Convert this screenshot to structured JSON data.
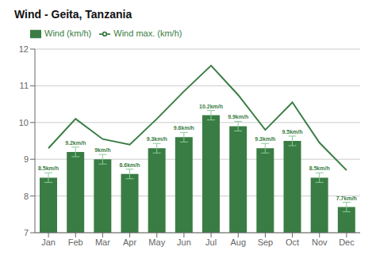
{
  "chart_data": {
    "type": "bar",
    "title": "Wind - Geita, Tanzania",
    "categories": [
      "Jan",
      "Feb",
      "Mar",
      "Apr",
      "May",
      "Jun",
      "Jul",
      "Aug",
      "Sep",
      "Oct",
      "Nov",
      "Dec"
    ],
    "series": [
      {
        "name": "Wind (km/h)",
        "type": "bar",
        "color": "#3a7d44",
        "values": [
          8.5,
          9.2,
          9.0,
          8.6,
          9.3,
          9.6,
          10.2,
          9.9,
          9.3,
          9.5,
          8.5,
          7.7
        ],
        "value_labels": [
          "8.5km/h",
          "9.2km/h",
          "9km/h",
          "8.6km/h",
          "9.3km/h",
          "9.6km/h",
          "10.2km/h",
          "9.9km/h",
          "9.3km/h",
          "9.5km/h",
          "8.5km/h",
          "7.7km/h"
        ],
        "error": [
          0.13,
          0.13,
          0.13,
          0.13,
          0.13,
          0.13,
          0.13,
          0.13,
          0.13,
          0.13,
          0.13,
          0.13
        ]
      },
      {
        "name": "Wind max. (km/h)",
        "type": "line",
        "color": "#3a7d44",
        "values": [
          9.3,
          10.1,
          9.55,
          9.4,
          10.1,
          10.85,
          11.55,
          10.75,
          9.8,
          10.55,
          9.45,
          8.7
        ]
      }
    ],
    "ylim": [
      7,
      12
    ],
    "yticks": [
      7,
      8,
      9,
      10,
      11,
      12
    ],
    "grid": true,
    "legend": "upper left",
    "data_labels": true
  }
}
